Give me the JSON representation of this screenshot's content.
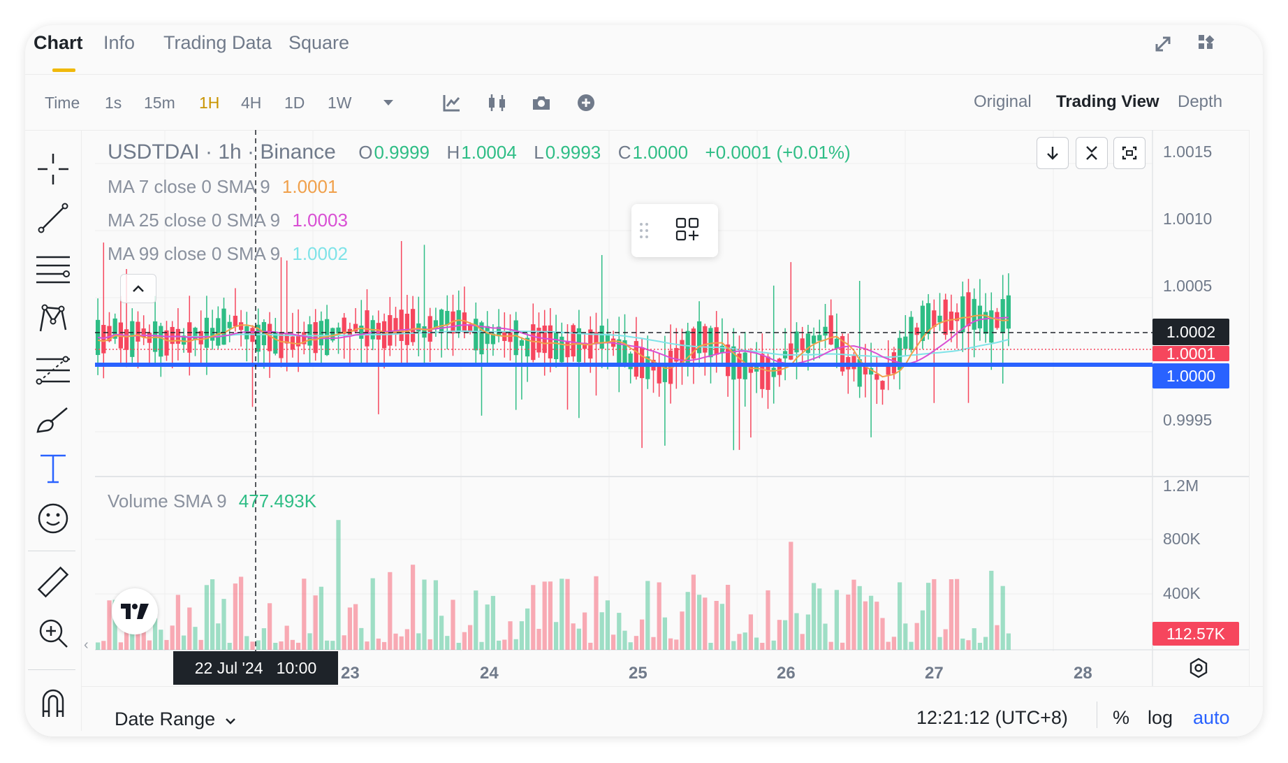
{
  "tabs": [
    "Chart",
    "Info",
    "Trading Data",
    "Square"
  ],
  "timeframes": {
    "label": "Time",
    "items": [
      "1s",
      "15m",
      "1H",
      "4H",
      "1D",
      "1W"
    ],
    "active": "1H"
  },
  "views": [
    "Original",
    "Trading View",
    "Depth"
  ],
  "legend": {
    "symbol": "USDTDAI · 1h · Binance",
    "o_label": "O",
    "o": "0.9999",
    "h_label": "H",
    "h": "1.0004",
    "l_label": "L",
    "l": "0.9993",
    "c_label": "C",
    "c": "1.0000",
    "change": "+0.0001 (+0.01%)",
    "ma7_label": "MA 7 close 0 SMA 9",
    "ma7": "1.0001",
    "ma25_label": "MA 25 close 0 SMA 9",
    "ma25": "1.0003",
    "ma99_label": "MA 99 close 0 SMA 9",
    "ma99": "1.0002",
    "volume_label": "Volume SMA 9",
    "volume": "477.493K"
  },
  "price_axis": [
    "1.0015",
    "1.0010",
    "1.0005",
    "0.9995"
  ],
  "price_tags": {
    "crosshair": "1.0002",
    "last": "1.0001",
    "blue": "1.0000"
  },
  "volume_axis": [
    "1.2M",
    "800K",
    "400K"
  ],
  "volume_tag": "112.57K",
  "date_axis": [
    "24",
    "25",
    "26",
    "27",
    "28"
  ],
  "date_axis_partial": "23",
  "crosshair_time": "22 Jul '24   10:00",
  "footer": {
    "date_range": "Date Range",
    "clock": "12:21:12 (UTC+8)",
    "percent": "%",
    "log": "log",
    "auto": "auto"
  },
  "colors": {
    "up": "#2ebd85",
    "down": "#f6465d",
    "ma7": "#f0a04b",
    "ma25": "#d94fd4",
    "ma99": "#7fe3e8",
    "accent": "#f0b90b",
    "blue_line": "#2962ff"
  }
}
